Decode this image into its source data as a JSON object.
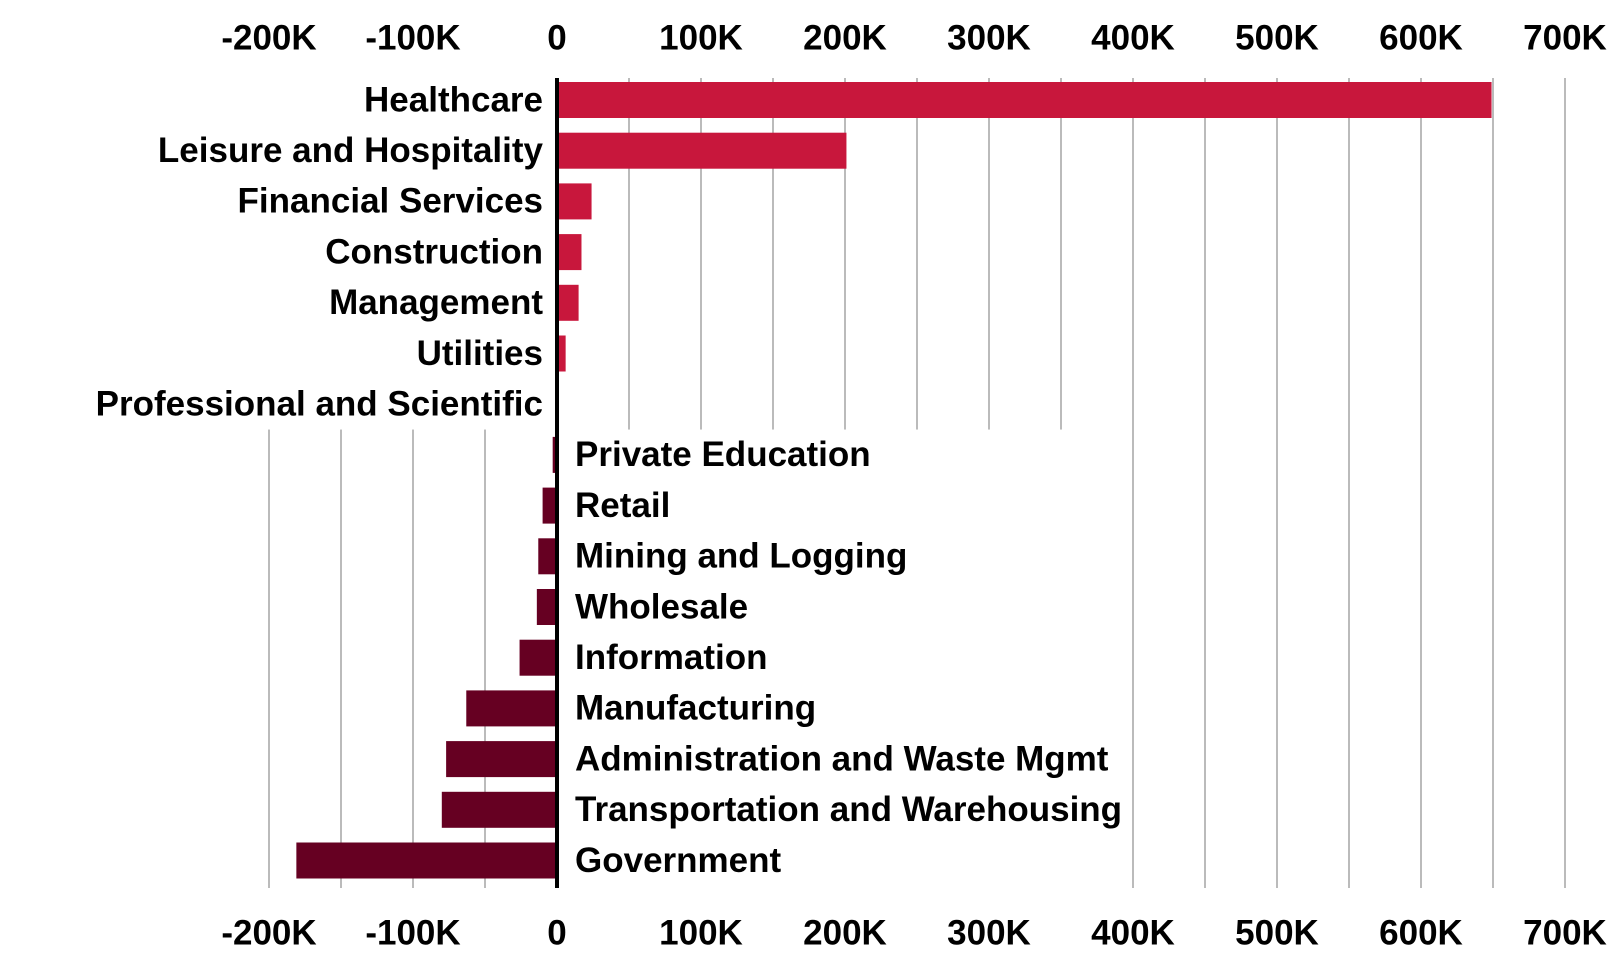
{
  "chart_data": {
    "type": "bar",
    "orientation": "horizontal",
    "categories": [
      "Healthcare",
      "Leisure and Hospitality",
      "Financial Services",
      "Construction",
      "Management",
      "Utilities",
      "Professional and Scientific",
      "Private Education",
      "Retail",
      "Mining and Logging",
      "Wholesale",
      "Information",
      "Manufacturing",
      "Administration and Waste Mgmt",
      "Transportation and Warehousing",
      "Government"
    ],
    "values": [
      649000,
      201000,
      24000,
      17000,
      15000,
      6000,
      0,
      -3000,
      -10000,
      -13000,
      -14000,
      -26000,
      -63000,
      -77000,
      -80000,
      -181000
    ],
    "positive_color": "#c8173c",
    "negative_color": "#660022",
    "xlim": [
      -200000,
      700000
    ],
    "xticks": [
      {
        "value": -200000,
        "label": "-200K"
      },
      {
        "value": -100000,
        "label": "-100K"
      },
      0,
      {
        "value": 100000,
        "label": "100K"
      },
      {
        "value": 200000,
        "label": "200K"
      },
      {
        "value": 300000,
        "label": "300K"
      },
      {
        "value": 400000,
        "label": "400K"
      },
      {
        "value": 500000,
        "label": "500K"
      },
      {
        "value": 600000,
        "label": "600K"
      },
      {
        "value": 700000,
        "label": "700K"
      }
    ],
    "minor_xticks": [
      -150000,
      -50000,
      50000,
      150000,
      250000,
      350000,
      450000,
      550000,
      650000
    ],
    "grid": true
  }
}
